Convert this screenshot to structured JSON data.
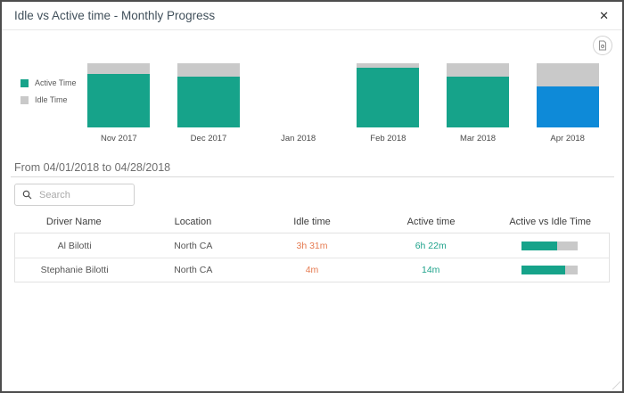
{
  "dialog": {
    "title": "Idle vs Active time - Monthly Progress",
    "close_label": "✕"
  },
  "chart_data": {
    "type": "bar",
    "stacked": "percent",
    "title": "",
    "categories": [
      "Nov 2017",
      "Dec 2017",
      "Jan 2018",
      "Feb 2018",
      "Mar 2018",
      "Apr 2018"
    ],
    "series": [
      {
        "name": "Active Time",
        "values": [
          83,
          79,
          0,
          93,
          79,
          64
        ],
        "color": "#16a38a"
      },
      {
        "name": "Idle Time",
        "values": [
          17,
          21,
          0,
          7,
          21,
          36
        ],
        "color": "#c9c9c9"
      }
    ],
    "highlight": {
      "category": "Apr 2018",
      "color": "#0e8ad8"
    },
    "legend_position": "left",
    "note": "Jan 2018 has no data; values are percent of month total; Apr 2018 is the selected month shown in blue"
  },
  "filter": {
    "date_range": "From 04/01/2018 to 04/28/2018"
  },
  "search": {
    "placeholder": "Search"
  },
  "table": {
    "headers": [
      "Driver Name",
      "Location",
      "Idle time",
      "Active time",
      "Active vs Idle Time"
    ],
    "rows": [
      {
        "driver": "Al Bilotti",
        "location": "North CA",
        "idle_time": "3h 31m",
        "active_time": "6h 22m",
        "active_pct": 64
      },
      {
        "driver": "Stephanie Bilotti",
        "location": "North CA",
        "idle_time": "4m",
        "active_time": "14m",
        "active_pct": 78
      }
    ]
  },
  "colors": {
    "active": "#16a38a",
    "idle": "#c9c9c9",
    "selected_month": "#0e8ad8",
    "idle_value_text": "#e57a50",
    "active_value_text": "#1fa28b"
  }
}
